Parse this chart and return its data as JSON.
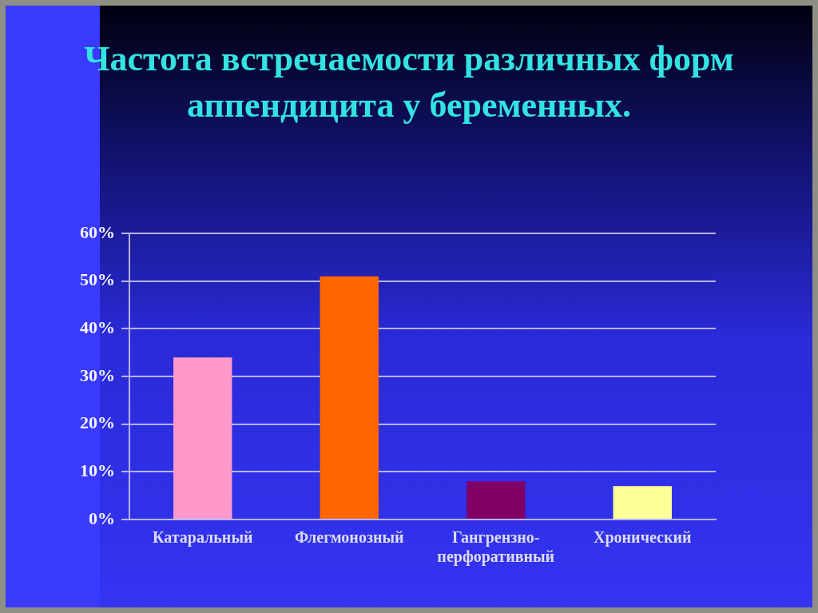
{
  "chart_data": {
    "type": "bar",
    "title": "Частота встречаемости различных форм аппендицита у беременных.",
    "categories": [
      "Катаральный",
      "Флегмонозный",
      "Гангрензно-перфоративный",
      "Хронический"
    ],
    "values": [
      34,
      51,
      8,
      7
    ],
    "colors": [
      "#ff99cc",
      "#ff6600",
      "#800066",
      "#ffff99"
    ],
    "ylim": [
      0,
      60
    ],
    "yticks": [
      {
        "value": 0,
        "label": "0%"
      },
      {
        "value": 10,
        "label": "10%"
      },
      {
        "value": 20,
        "label": "20%"
      },
      {
        "value": 30,
        "label": "30%"
      },
      {
        "value": 40,
        "label": "40%"
      },
      {
        "value": 50,
        "label": "50%"
      },
      {
        "value": 60,
        "label": "60%"
      }
    ],
    "grid": "y"
  }
}
